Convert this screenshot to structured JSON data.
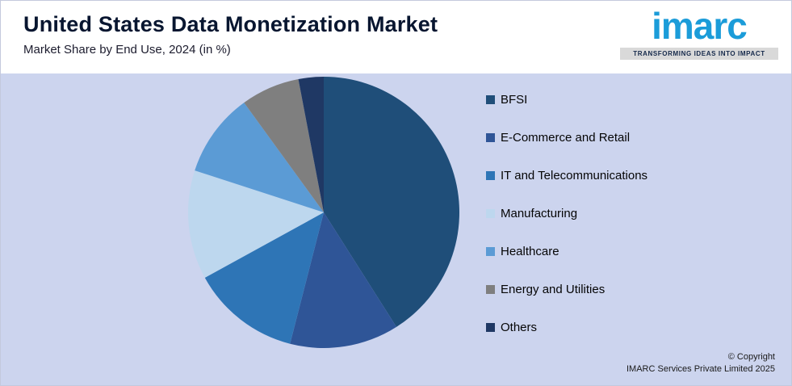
{
  "header": {
    "title": "United States Data Monetization Market",
    "subtitle": "Market Share by End Use, 2024 (in %)"
  },
  "logo": {
    "brand": "imarc",
    "brand_color": "#1b9cd9",
    "tagline": "TRANSFORMING IDEAS INTO IMPACT"
  },
  "footer": {
    "copyright_line1": "© Copyright",
    "copyright_line2": "IMARC Services Private Limited 2025"
  },
  "colors": {
    "background": "#ccd4ee",
    "header_background": "#ffffff"
  },
  "chart_data": {
    "type": "pie",
    "title": "United States Data Monetization Market",
    "subtitle": "Market Share by End Use, 2024 (in %)",
    "categories": [
      "BFSI",
      "E-Commerce and Retail",
      "IT and Telecommunications",
      "Manufacturing",
      "Healthcare",
      "Energy and Utilities",
      "Others"
    ],
    "values": [
      41,
      13,
      13,
      13,
      10,
      7,
      3
    ],
    "colors": [
      "#1F4E79",
      "#2F5597",
      "#2E75B6",
      "#BDD7EE",
      "#5B9BD5",
      "#7F7F7F",
      "#1F3864"
    ],
    "legend_position": "right",
    "start_angle_deg": 0,
    "direction": "clockwise",
    "data_labels": false
  }
}
